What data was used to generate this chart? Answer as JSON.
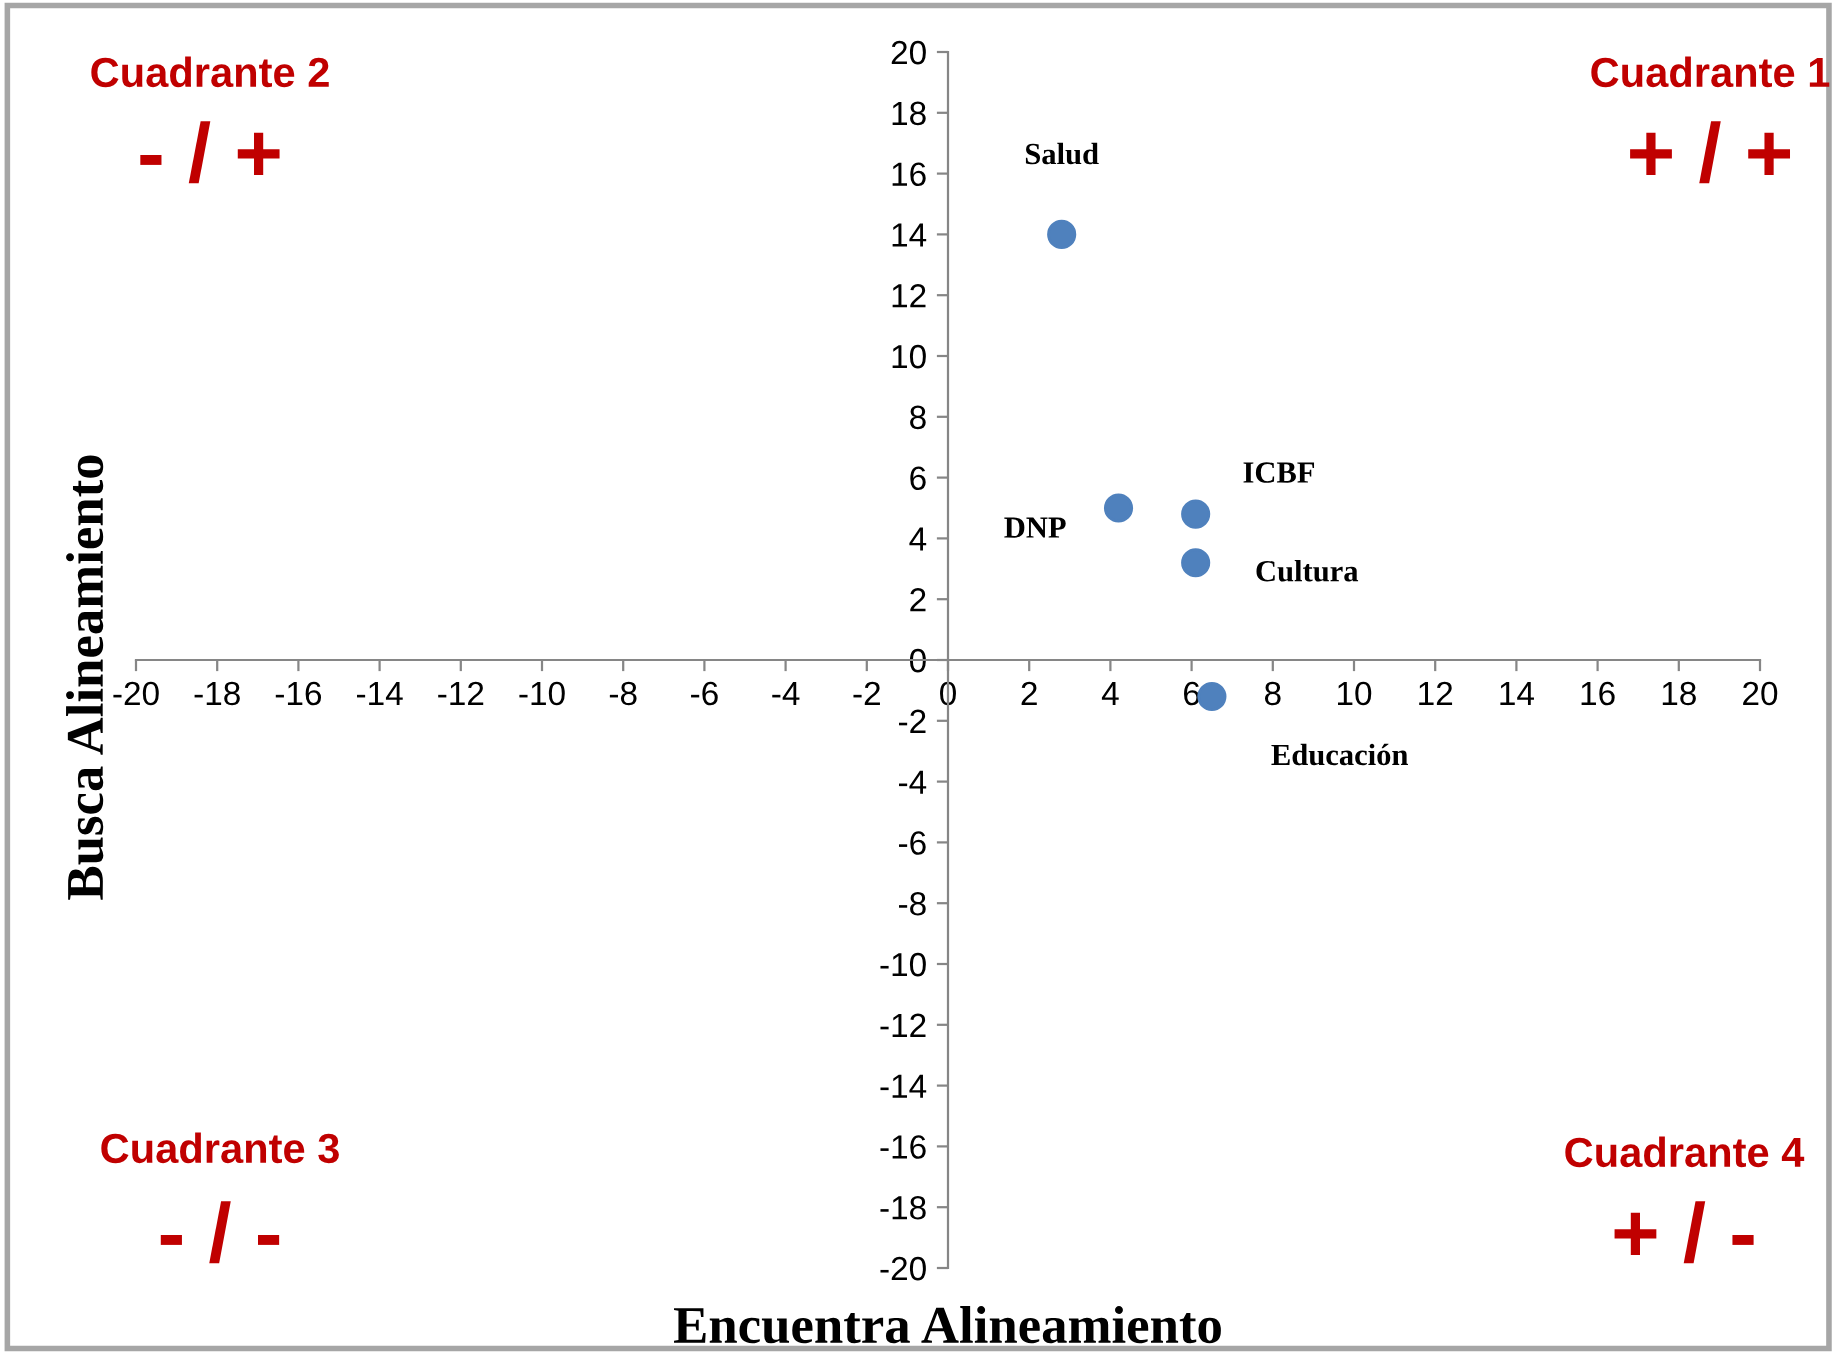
{
  "chart_data": {
    "type": "scatter",
    "xlabel": "Encuentra Alineamiento",
    "ylabel": "Busca Alineamiento",
    "series": [
      {
        "color": "#4f81bd",
        "x": [
          2.8,
          4.2,
          6.1,
          6.1,
          6.5
        ],
        "values": [
          14,
          5,
          4.8,
          3.2,
          -1.2
        ]
      }
    ],
    "marker": "circle",
    "xlim": [
      -20,
      20
    ],
    "ylim": [
      -20,
      20
    ],
    "xticks": [
      -20,
      -18,
      -16,
      -14,
      -12,
      -10,
      -8,
      -6,
      -4,
      -2,
      0,
      2,
      4,
      6,
      8,
      10,
      12,
      14,
      16,
      18,
      20
    ],
    "yticks": [
      -20,
      -18,
      -16,
      -14,
      -12,
      -10,
      -8,
      -6,
      -4,
      -2,
      0,
      2,
      4,
      6,
      8,
      10,
      12,
      14,
      16,
      18,
      20
    ],
    "grid": false,
    "annotations": [
      {
        "text": "Salud",
        "x": 2.8,
        "y": 14
      },
      {
        "text": "DNP",
        "x": 4.2,
        "y": 5
      },
      {
        "text": "ICBF",
        "x": 6.1,
        "y": 4.8
      },
      {
        "text": "Cultura",
        "x": 6.1,
        "y": 3.2
      },
      {
        "text": "Educación",
        "x": 6.5,
        "y": -1.2
      },
      "Cuadrante 2",
      "- / +",
      "Cuadrante 1",
      "+ / +",
      "Cuadrante 3",
      "- / -",
      "Cuadrante 4",
      "+ / -"
    ]
  }
}
